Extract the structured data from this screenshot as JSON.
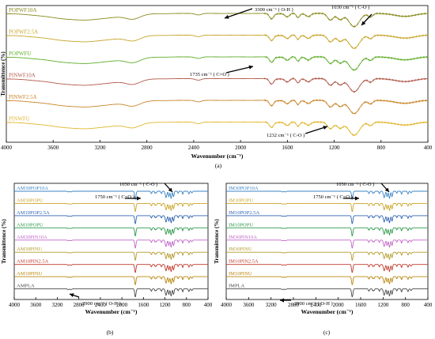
{
  "chart_data": [
    {
      "type": "line",
      "panel": "(a)",
      "xlabel": "Wavenumber (cm⁻¹)",
      "ylabel": "Transmittence (%)",
      "xlim": [
        4000,
        400
      ],
      "xticks": [
        4000,
        3600,
        3200,
        2800,
        2400,
        2000,
        1600,
        1200,
        800,
        400
      ],
      "series": [
        {
          "name": "POPWF10A",
          "color": "#8a8a1e",
          "profile": "p"
        },
        {
          "name": "POPWF2.5A",
          "color": "#c7a52a",
          "profile": "p"
        },
        {
          "name": "POPWFU",
          "color": "#5fae2b",
          "profile": "p"
        },
        {
          "name": "PINWF10A",
          "color": "#b25a4c",
          "profile": "p"
        },
        {
          "name": "PINWF2.5A",
          "color": "#c9862a",
          "profile": "p"
        },
        {
          "name": "PINWFU",
          "color": "#e0b62e",
          "profile": "p"
        }
      ],
      "annotations": [
        {
          "text": "3300 cm⁻¹ ( O-H )",
          "x": 3300
        },
        {
          "text": "1030 cm⁻¹ ( C-O )",
          "x": 1030
        },
        {
          "text": "1735 cm⁻¹ ( C=O )",
          "x": 1735
        },
        {
          "text": "1232 cm⁻¹ ( C-O )",
          "x": 1232
        }
      ]
    },
    {
      "type": "line",
      "panel": "(b)",
      "xlabel": "Wavenumber (cm⁻¹)",
      "ylabel": "Transmittence (%)",
      "xlim": [
        4000,
        400
      ],
      "xticks": [
        4000,
        3600,
        3200,
        2800,
        2400,
        2000,
        1600,
        1200,
        800,
        400
      ],
      "series": [
        {
          "name": "AM30POP10A",
          "color": "#3a84c4",
          "profile": "c"
        },
        {
          "name": "AM30POPU",
          "color": "#c9a527",
          "profile": "c"
        },
        {
          "name": "AM10POP2.5A",
          "color": "#2f62b0",
          "profile": "c"
        },
        {
          "name": "AM10POPU",
          "color": "#2d9a4a",
          "profile": "c"
        },
        {
          "name": "AM30PIN10A",
          "color": "#c266c9",
          "profile": "c"
        },
        {
          "name": "AM30PINU",
          "color": "#b59a2a",
          "profile": "c"
        },
        {
          "name": "AM10PIN2.5A",
          "color": "#c0392b",
          "profile": "c"
        },
        {
          "name": "AM10PINU",
          "color": "#b8860b",
          "profile": "c"
        },
        {
          "name": "AMPLA",
          "color": "#4a4a4a",
          "profile": "c"
        }
      ],
      "annotations": [
        {
          "text": "1030 cm⁻¹ ( C-O )",
          "x": 1030
        },
        {
          "text": "1750 cm⁻¹ ( C=O )",
          "x": 1750
        },
        {
          "text": "2900 cm⁻¹ ( O-H )",
          "x": 2900
        }
      ]
    },
    {
      "type": "line",
      "panel": "(c)",
      "xlabel": "Wavenumber (cm⁻¹)",
      "ylabel": "Transmittence (%)",
      "xlim": [
        4000,
        400
      ],
      "xticks": [
        4000,
        3600,
        3200,
        2800,
        2400,
        2000,
        1600,
        1200,
        800,
        400
      ],
      "series": [
        {
          "name": "IM30POP10A",
          "color": "#3a84c4",
          "profile": "c"
        },
        {
          "name": "IM30POPU",
          "color": "#c9a527",
          "profile": "c"
        },
        {
          "name": "IM10POP2.5A",
          "color": "#2f62b0",
          "profile": "c"
        },
        {
          "name": "IM10POPU",
          "color": "#2d9a4a",
          "profile": "c"
        },
        {
          "name": "IM30PIN10A",
          "color": "#c266c9",
          "profile": "c"
        },
        {
          "name": "IM30PINU",
          "color": "#b59a2a",
          "profile": "c"
        },
        {
          "name": "IM10PIN2.5A",
          "color": "#c0392b",
          "profile": "c"
        },
        {
          "name": "IM10PINU",
          "color": "#b8860b",
          "profile": "c"
        },
        {
          "name": "IMPLA",
          "color": "#4a4a4a",
          "profile": "c"
        }
      ],
      "annotations": [
        {
          "text": "1030 cm⁻¹ ( C-O )",
          "x": 1030
        },
        {
          "text": "1750 cm⁻¹ ( C=O )",
          "x": 1750
        },
        {
          "text": "2900 cm⁻¹ ( O-H )",
          "x": 2900
        }
      ]
    }
  ]
}
